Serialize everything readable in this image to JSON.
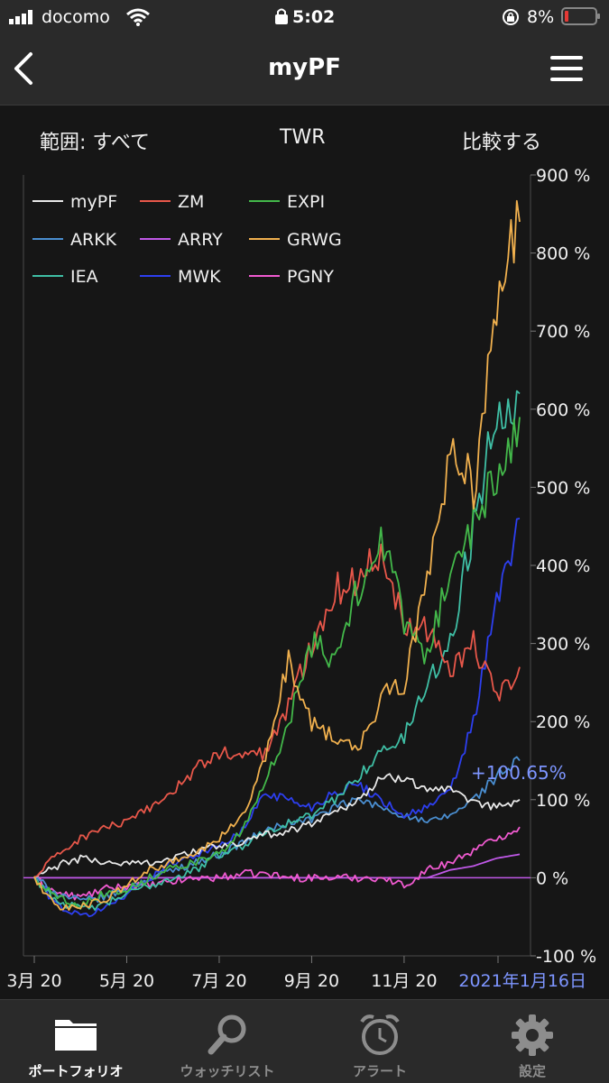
{
  "status_bar": {
    "carrier": "docomo",
    "time": "5:02",
    "battery": "8%",
    "icons": [
      "signal-icon",
      "wifi-icon",
      "lock-icon",
      "orientation-lock-icon",
      "battery-icon"
    ]
  },
  "nav": {
    "title": "myPF",
    "back_icon": "back-chevron-icon",
    "menu_icon": "hamburger-menu-icon"
  },
  "controls": {
    "range_label": "範囲: すべて",
    "metric_label": "TWR",
    "compare_label": "比較する"
  },
  "chart_data": {
    "type": "line",
    "title": "",
    "xlabel": "",
    "ylabel": "",
    "y_unit": "%",
    "ylim": [
      -100,
      900
    ],
    "y_ticks": [
      "900 %",
      "800 %",
      "700 %",
      "600 %",
      "500 %",
      "400 %",
      "300 %",
      "200 %",
      "100 %",
      "0 %",
      "-100 %"
    ],
    "x_tick_labels": [
      "3月 20",
      "5月 20",
      "7月 20",
      "9月 20",
      "11月 20"
    ],
    "x_tick_positions": [
      0,
      2,
      4,
      6,
      8
    ],
    "current_date_label": "2021年1月16日",
    "current_value_label": "+100.65%",
    "x_range_months": [
      0,
      10.5
    ],
    "legend_placement": "top-left",
    "colors": {
      "highlight": "#7d95ff",
      "zero_line": "#c058e8"
    },
    "series": [
      {
        "name": "myPF",
        "color": "#e8e8e8",
        "x": [
          0,
          0.5,
          1,
          1.5,
          2,
          2.5,
          3,
          3.5,
          4,
          4.5,
          5,
          5.5,
          6,
          6.5,
          7,
          7.5,
          8,
          8.5,
          9,
          9.5,
          10,
          10.5
        ],
        "y": [
          0,
          15,
          25,
          20,
          18,
          20,
          25,
          35,
          40,
          45,
          55,
          60,
          70,
          85,
          100,
          125,
          130,
          115,
          110,
          95,
          90,
          100
        ]
      },
      {
        "name": "ZM",
        "color": "#e8574a",
        "x": [
          0,
          0.5,
          1,
          1.5,
          2,
          2.5,
          3,
          3.5,
          4,
          4.5,
          5,
          5.5,
          6,
          6.5,
          7,
          7.5,
          8,
          8.5,
          9,
          9.5,
          10,
          10.5
        ],
        "y": [
          0,
          30,
          50,
          65,
          70,
          90,
          110,
          140,
          160,
          155,
          160,
          220,
          300,
          370,
          380,
          420,
          330,
          320,
          270,
          300,
          230,
          270
        ]
      },
      {
        "name": "EXPI",
        "color": "#43b84a",
        "x": [
          0,
          0.5,
          1,
          1.5,
          2,
          2.5,
          3,
          3.5,
          4,
          4.5,
          5,
          5.5,
          6,
          6.5,
          7,
          7.5,
          8,
          8.5,
          9,
          9.5,
          10,
          10.5
        ],
        "y": [
          0,
          -25,
          -35,
          -20,
          -15,
          0,
          15,
          20,
          30,
          60,
          120,
          200,
          300,
          280,
          370,
          440,
          330,
          280,
          400,
          450,
          520,
          590
        ]
      },
      {
        "name": "ARKK",
        "color": "#4a8ed0",
        "x": [
          0,
          0.5,
          1,
          1.5,
          2,
          2.5,
          3,
          3.5,
          4,
          4.5,
          5,
          5.5,
          6,
          6.5,
          7,
          7.5,
          8,
          8.5,
          9,
          9.5,
          10,
          10.5
        ],
        "y": [
          0,
          -20,
          -30,
          -25,
          -15,
          0,
          10,
          20,
          30,
          45,
          60,
          70,
          75,
          90,
          100,
          90,
          80,
          70,
          80,
          100,
          130,
          150
        ]
      },
      {
        "name": "ARRY",
        "color": "#c058e8",
        "x": [
          0,
          0.5,
          1,
          1.5,
          2,
          2.5,
          3,
          3.5,
          4,
          4.5,
          5,
          5.5,
          6,
          6.5,
          7,
          7.5,
          8,
          8.5,
          9,
          9.5,
          10,
          10.5
        ],
        "y": [
          0,
          0,
          0,
          0,
          0,
          0,
          0,
          0,
          0,
          0,
          0,
          0,
          0,
          0,
          0,
          0,
          0,
          0,
          10,
          15,
          25,
          30
        ]
      },
      {
        "name": "GRWG",
        "color": "#f0b04e",
        "x": [
          0,
          0.5,
          1,
          1.5,
          2,
          2.5,
          3,
          3.5,
          4,
          4.5,
          5,
          5.5,
          6,
          6.5,
          7,
          7.5,
          8,
          8.5,
          9,
          9.5,
          10,
          10.5
        ],
        "y": [
          0,
          -40,
          -35,
          -30,
          -10,
          10,
          20,
          30,
          50,
          80,
          150,
          280,
          200,
          180,
          160,
          230,
          250,
          380,
          550,
          500,
          720,
          840
        ]
      },
      {
        "name": "IEA",
        "color": "#3fbfa5",
        "x": [
          0,
          0.5,
          1,
          1.5,
          2,
          2.5,
          3,
          3.5,
          4,
          4.5,
          5,
          5.5,
          6,
          6.5,
          7,
          7.5,
          8,
          8.5,
          9,
          9.5,
          10,
          10.5
        ],
        "y": [
          0,
          -30,
          -40,
          -35,
          -20,
          -10,
          0,
          10,
          30,
          40,
          60,
          70,
          80,
          100,
          130,
          160,
          180,
          250,
          300,
          450,
          600,
          620
        ]
      },
      {
        "name": "MWK",
        "color": "#2d3ff0",
        "x": [
          0,
          0.5,
          1,
          1.5,
          2,
          2.5,
          3,
          3.5,
          4,
          4.5,
          5,
          5.5,
          6,
          6.5,
          7,
          7.5,
          8,
          8.5,
          9,
          9.5,
          10,
          10.5
        ],
        "y": [
          0,
          -35,
          -50,
          -40,
          -20,
          0,
          20,
          30,
          40,
          60,
          110,
          100,
          90,
          110,
          120,
          100,
          80,
          90,
          110,
          200,
          350,
          460
        ]
      },
      {
        "name": "PGNY",
        "color": "#f05ad0",
        "x": [
          0,
          0.5,
          1,
          1.5,
          2,
          2.5,
          3,
          3.5,
          4,
          4.5,
          5,
          5.5,
          6,
          6.5,
          7,
          7.5,
          8,
          8.5,
          9,
          9.5,
          10,
          10.5
        ],
        "y": [
          0,
          -20,
          -25,
          -15,
          -10,
          -10,
          -5,
          0,
          0,
          5,
          5,
          0,
          0,
          0,
          0,
          0,
          -10,
          10,
          20,
          35,
          50,
          65
        ]
      }
    ]
  },
  "tabs": [
    {
      "label": "ポートフォリオ",
      "icon": "folder-icon",
      "active": true
    },
    {
      "label": "ウォッチリスト",
      "icon": "magnifier-icon",
      "active": false
    },
    {
      "label": "アラート",
      "icon": "alarm-clock-icon",
      "active": false
    },
    {
      "label": "設定",
      "icon": "gear-icon",
      "active": false
    }
  ]
}
